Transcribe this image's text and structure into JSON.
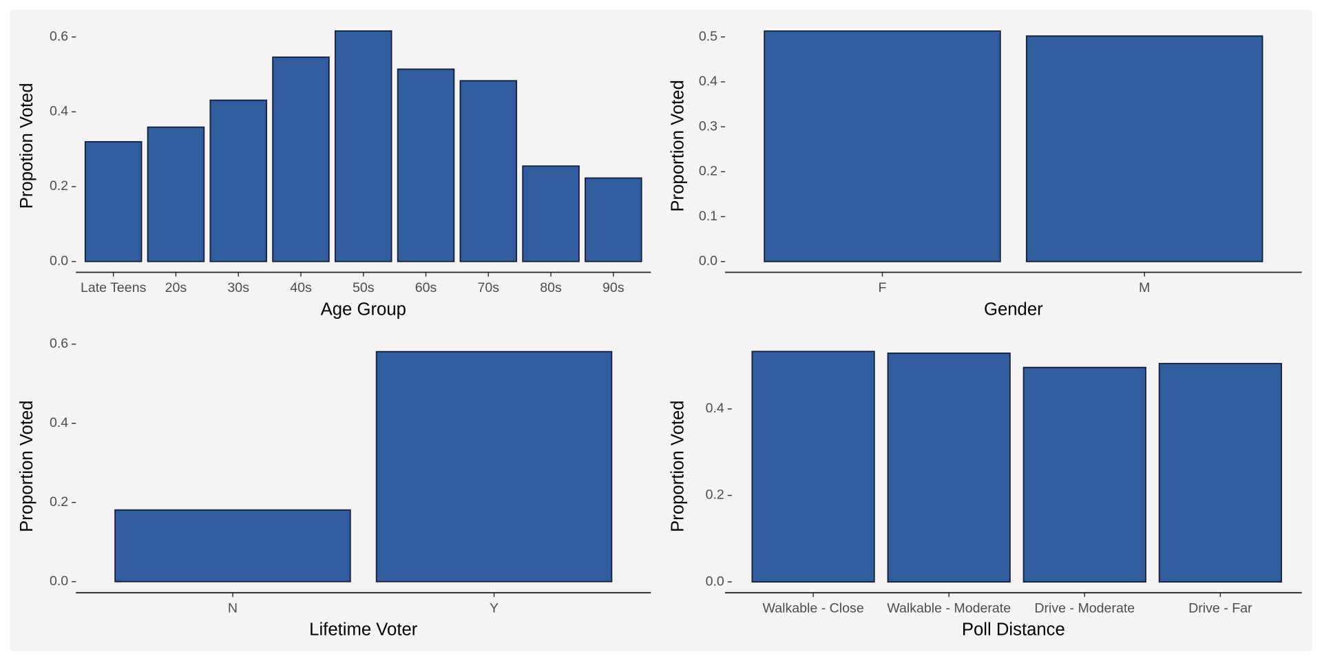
{
  "chart_data": [
    {
      "type": "bar",
      "x_label": "Age Group",
      "y_label": "Propotion Voted",
      "categories": [
        "Late Teens",
        "20s",
        "30s",
        "40s",
        "50s",
        "60s",
        "70s",
        "80s",
        "90s"
      ],
      "values": [
        0.32,
        0.359,
        0.431,
        0.546,
        0.616,
        0.514,
        0.483,
        0.255,
        0.223
      ],
      "color": "#315d9e",
      "ylim": [
        -0.029,
        0.647
      ],
      "yticks": [
        {
          "value": 0,
          "label": "0.0"
        },
        0.2,
        0.4,
        0.6
      ]
    },
    {
      "type": "bar",
      "x_label": "Gender",
      "y_label": "Proportion Voted",
      "categories": [
        "F",
        "M"
      ],
      "values": [
        0.513,
        0.502
      ],
      "color": "#315d9e",
      "ylim": [
        -0.024,
        0.539
      ],
      "yticks": [
        {
          "value": 0,
          "label": "0.0"
        },
        0.1,
        0.2,
        0.3,
        0.4,
        0.5
      ]
    },
    {
      "type": "bar",
      "x_label": "Lifetime Voter",
      "y_label": "Proportion Voted",
      "categories": [
        "N",
        "Y"
      ],
      "values": [
        0.181,
        0.581
      ],
      "color": "#315d9e",
      "ylim": [
        -0.028,
        0.611
      ],
      "yticks": [
        {
          "value": 0,
          "label": "0.0"
        },
        0.2,
        0.4,
        0.6
      ]
    },
    {
      "type": "bar",
      "x_label": "Poll Distance",
      "y_label": "Proportion Voted",
      "categories": [
        "Walkable - Close",
        "Walkable - Moderate",
        "Drive - Moderate",
        "Drive - Far"
      ],
      "values": [
        0.533,
        0.529,
        0.496,
        0.505
      ],
      "color": "#315d9e",
      "ylim": [
        -0.025,
        0.56
      ],
      "yticks": [
        {
          "value": 0,
          "label": "0.0"
        },
        0.2,
        0.4
      ]
    }
  ]
}
